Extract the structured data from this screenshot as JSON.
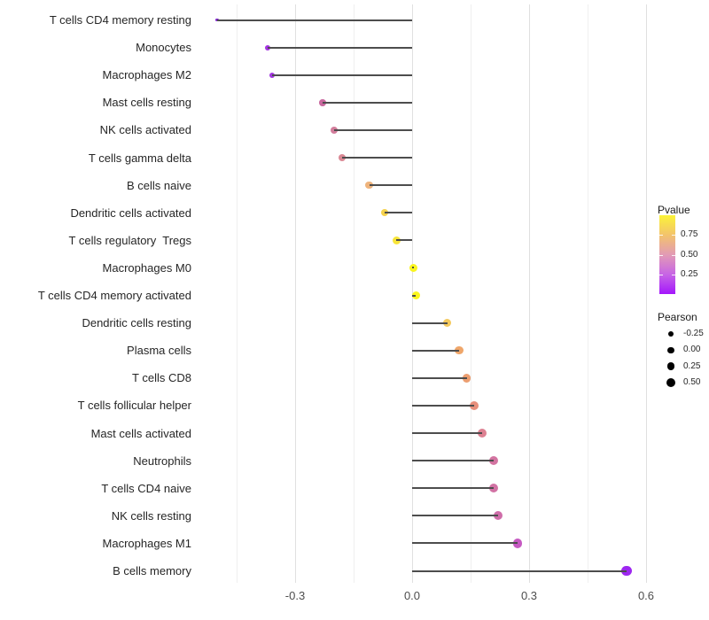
{
  "figure": {
    "background": "#FFFFFF",
    "colors": {
      "stem": "#4D4D4D",
      "grid_major": "#E0E0E0",
      "grid_minor": "#EFEFEF",
      "axis_text": "#4D4D4D",
      "category_text": "#262626"
    }
  },
  "chart_data": {
    "type": "scatter",
    "subtype": "lollipop",
    "title": "",
    "xlabel": "",
    "ylabel": "",
    "xlim": [
      -0.55,
      0.62
    ],
    "x_tick_values": [
      -0.3,
      0.0,
      0.3,
      0.6
    ],
    "x_tick_labels": [
      "-0.3",
      "0.0",
      "0.3",
      "0.6"
    ],
    "x_minor_grid_values": [
      -0.45,
      -0.15,
      0.15,
      0.45
    ],
    "grid": "vertical-only",
    "rows": [
      {
        "label": "T cells CD4 memory resting",
        "pearson": -0.5,
        "pvalue": 0.02,
        "color": "#8224D0",
        "size": 3.5
      },
      {
        "label": "Monocytes",
        "pearson": -0.37,
        "pvalue": 0.1,
        "color": "#A433E2",
        "size": 6
      },
      {
        "label": "Macrophages M2",
        "pearson": -0.36,
        "pvalue": 0.11,
        "color": "#A136DF",
        "size": 6
      },
      {
        "label": "Mast cells resting",
        "pearson": -0.23,
        "pvalue": 0.3,
        "color": "#C9699F",
        "size": 7.5
      },
      {
        "label": "NK cells activated",
        "pearson": -0.2,
        "pvalue": 0.36,
        "color": "#D27D9B",
        "size": 8
      },
      {
        "label": "T cells gamma delta",
        "pearson": -0.18,
        "pvalue": 0.4,
        "color": "#DA8894",
        "size": 8
      },
      {
        "label": "B cells naive",
        "pearson": -0.11,
        "pvalue": 0.55,
        "color": "#EFB47C",
        "size": 8.5
      },
      {
        "label": "Dendritic cells activated",
        "pearson": -0.07,
        "pvalue": 0.68,
        "color": "#F5D24D",
        "size": 8.5
      },
      {
        "label": "T cells regulatory  Tregs",
        "pearson": -0.04,
        "pvalue": 0.78,
        "color": "#F8E53A",
        "size": 9
      },
      {
        "label": "Macrophages M0",
        "pearson": 0.004,
        "pvalue": 0.93,
        "color": "#FAF51E",
        "size": 9
      },
      {
        "label": "T cells CD4 memory activated",
        "pearson": 0.01,
        "pvalue": 0.93,
        "color": "#FAF51E",
        "size": 9
      },
      {
        "label": "Dendritic cells resting",
        "pearson": 0.09,
        "pvalue": 0.7,
        "color": "#F4C95D",
        "size": 9.5
      },
      {
        "label": "Plasma cells",
        "pearson": 0.12,
        "pvalue": 0.6,
        "color": "#EFA66A",
        "size": 9.5
      },
      {
        "label": "T cells CD8",
        "pearson": 0.14,
        "pvalue": 0.57,
        "color": "#EC9E70",
        "size": 9.5
      },
      {
        "label": "T cells follicular helper",
        "pearson": 0.16,
        "pvalue": 0.5,
        "color": "#E78F7C",
        "size": 10
      },
      {
        "label": "Mast cells activated",
        "pearson": 0.18,
        "pvalue": 0.44,
        "color": "#DD8192",
        "size": 10
      },
      {
        "label": "Neutrophils",
        "pearson": 0.21,
        "pvalue": 0.36,
        "color": "#D374A1",
        "size": 10
      },
      {
        "label": "T cells CD4 naive",
        "pearson": 0.21,
        "pvalue": 0.35,
        "color": "#D272A4",
        "size": 10
      },
      {
        "label": "NK cells resting",
        "pearson": 0.22,
        "pvalue": 0.33,
        "color": "#CF6DA9",
        "size": 10
      },
      {
        "label": "Macrophages M1",
        "pearson": 0.27,
        "pvalue": 0.21,
        "color": "#C659C2",
        "size": 10.5
      },
      {
        "label": "B cells memory",
        "pearson": 0.55,
        "pvalue": 0.01,
        "color": "#9D27F0",
        "size": 11.5
      }
    ],
    "legend_pvalue": {
      "title": "Pvalue",
      "tick_labels": [
        "0.75",
        "0.50",
        "0.25"
      ],
      "tick_values": [
        0.75,
        0.5,
        0.25
      ],
      "range": [
        0,
        1
      ],
      "gradient_top_to_bottom": [
        "#FBF338",
        "#F3C36C",
        "#E29BB5",
        "#C765E5",
        "#A417FB"
      ],
      "position": "right"
    },
    "legend_pearson": {
      "title": "Pearson",
      "entries": [
        {
          "label": "-0.25",
          "size": 6.5
        },
        {
          "label": "0.00",
          "size": 7.5
        },
        {
          "label": "0.25",
          "size": 8.8
        },
        {
          "label": "0.50",
          "size": 10
        }
      ],
      "dot_color": "#000000",
      "position": "right"
    }
  }
}
